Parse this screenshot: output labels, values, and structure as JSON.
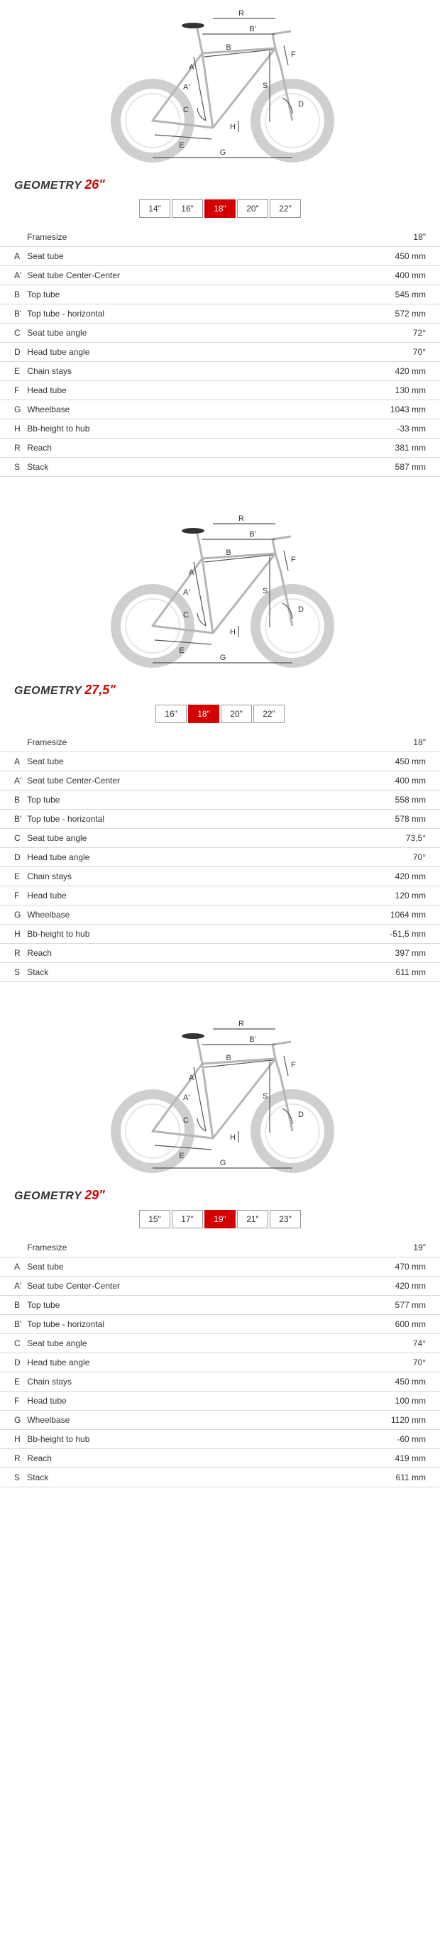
{
  "diagram_labels": [
    "A",
    "A'",
    "B",
    "B'",
    "C",
    "D",
    "E",
    "F",
    "G",
    "H",
    "R",
    "S"
  ],
  "heading_prefix": "GEOMETRY",
  "colors": {
    "accent": "#d40000",
    "border": "#d9d9d9",
    "frame": "#b5b5b5",
    "wheel": "#cfcfcf"
  },
  "sections": [
    {
      "title_size": "26\"",
      "tabs": [
        "14\"",
        "16\"",
        "18\"",
        "20\"",
        "22\""
      ],
      "active_tab": "18\"",
      "header": {
        "label": "Framesize",
        "value": "18\""
      },
      "rows": [
        {
          "key": "A",
          "label": "Seat tube",
          "value": "450 mm"
        },
        {
          "key": "A'",
          "label": "Seat tube Center-Center",
          "value": "400 mm"
        },
        {
          "key": "B",
          "label": "Top tube",
          "value": "545 mm"
        },
        {
          "key": "B'",
          "label": "Top tube - horizontal",
          "value": "572 mm"
        },
        {
          "key": "C",
          "label": "Seat tube angle",
          "value": "72°"
        },
        {
          "key": "D",
          "label": "Head tube angle",
          "value": "70°"
        },
        {
          "key": "E",
          "label": "Chain stays",
          "value": "420 mm"
        },
        {
          "key": "F",
          "label": "Head tube",
          "value": "130 mm"
        },
        {
          "key": "G",
          "label": "Wheelbase",
          "value": "1043 mm"
        },
        {
          "key": "H",
          "label": "Bb-height to hub",
          "value": "-33 mm"
        },
        {
          "key": "R",
          "label": "Reach",
          "value": "381 mm"
        },
        {
          "key": "S",
          "label": "Stack",
          "value": "587 mm"
        }
      ]
    },
    {
      "title_size": "27,5\"",
      "tabs": [
        "16\"",
        "18\"",
        "20\"",
        "22\""
      ],
      "active_tab": "18\"",
      "header": {
        "label": "Framesize",
        "value": "18\""
      },
      "rows": [
        {
          "key": "A",
          "label": "Seat tube",
          "value": "450 mm"
        },
        {
          "key": "A'",
          "label": "Seat tube Center-Center",
          "value": "400 mm"
        },
        {
          "key": "B",
          "label": "Top tube",
          "value": "558 mm"
        },
        {
          "key": "B'",
          "label": "Top tube - horizontal",
          "value": "578 mm"
        },
        {
          "key": "C",
          "label": "Seat tube angle",
          "value": "73,5°"
        },
        {
          "key": "D",
          "label": "Head tube angle",
          "value": "70°"
        },
        {
          "key": "E",
          "label": "Chain stays",
          "value": "420 mm"
        },
        {
          "key": "F",
          "label": "Head tube",
          "value": "120 mm"
        },
        {
          "key": "G",
          "label": "Wheelbase",
          "value": "1064 mm"
        },
        {
          "key": "H",
          "label": "Bb-height to hub",
          "value": "-51,5 mm"
        },
        {
          "key": "R",
          "label": "Reach",
          "value": "397 mm"
        },
        {
          "key": "S",
          "label": "Stack",
          "value": "611 mm"
        }
      ]
    },
    {
      "title_size": "29\"",
      "tabs": [
        "15\"",
        "17\"",
        "19\"",
        "21\"",
        "23\""
      ],
      "active_tab": "19\"",
      "header": {
        "label": "Framesize",
        "value": "19\""
      },
      "rows": [
        {
          "key": "A",
          "label": "Seat tube",
          "value": "470 mm"
        },
        {
          "key": "A'",
          "label": "Seat tube Center-Center",
          "value": "420 mm"
        },
        {
          "key": "B",
          "label": "Top tube",
          "value": "577 mm"
        },
        {
          "key": "B'",
          "label": "Top tube - horizontal",
          "value": "600 mm"
        },
        {
          "key": "C",
          "label": "Seat tube angle",
          "value": "74°"
        },
        {
          "key": "D",
          "label": "Head tube angle",
          "value": "70°"
        },
        {
          "key": "E",
          "label": "Chain stays",
          "value": "450 mm"
        },
        {
          "key": "F",
          "label": "Head tube",
          "value": "100 mm"
        },
        {
          "key": "G",
          "label": "Wheelbase",
          "value": "1120 mm"
        },
        {
          "key": "H",
          "label": "Bb-height to hub",
          "value": "-60 mm"
        },
        {
          "key": "R",
          "label": "Reach",
          "value": "419 mm"
        },
        {
          "key": "S",
          "label": "Stack",
          "value": "611 mm"
        }
      ]
    }
  ]
}
